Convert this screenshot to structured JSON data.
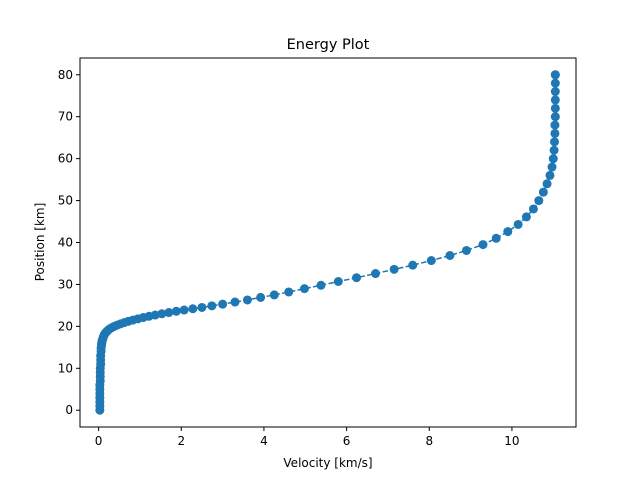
{
  "chart_data": {
    "type": "line",
    "title": "Energy Plot",
    "xlabel": "Velocity [km/s]",
    "ylabel": "Position [km]",
    "xlim": [
      -0.45,
      11.55
    ],
    "ylim": [
      -4.0,
      84.0
    ],
    "xticks": [
      0,
      2,
      4,
      6,
      8,
      10
    ],
    "yticks": [
      0,
      10,
      20,
      30,
      40,
      50,
      60,
      70,
      80
    ],
    "grid": false,
    "legend": "none",
    "series": [
      {
        "color": "#1f77b4",
        "line_style": "dashed",
        "marker": "circle",
        "x": [
          0.03,
          0.03,
          0.03,
          0.03,
          0.03,
          0.03,
          0.03,
          0.04,
          0.04,
          0.04,
          0.04,
          0.05,
          0.05,
          0.05,
          0.06,
          0.06,
          0.07,
          0.07,
          0.08,
          0.08,
          0.09,
          0.1,
          0.11,
          0.12,
          0.13,
          0.15,
          0.17,
          0.2,
          0.23,
          0.27,
          0.32,
          0.38,
          0.45,
          0.53,
          0.62,
          0.72,
          0.83,
          0.95,
          1.08,
          1.22,
          1.37,
          1.53,
          1.7,
          1.88,
          2.07,
          2.28,
          2.5,
          2.74,
          3.0,
          3.3,
          3.6,
          3.92,
          4.25,
          4.6,
          4.98,
          5.38,
          5.8,
          6.24,
          6.7,
          7.15,
          7.6,
          8.05,
          8.5,
          8.9,
          9.3,
          9.62,
          9.9,
          10.15,
          10.35,
          10.52,
          10.65,
          10.76,
          10.85,
          10.92,
          10.97,
          11.0,
          11.02,
          11.03,
          11.04,
          11.04,
          11.05,
          11.05,
          11.05,
          11.05,
          11.05,
          11.05,
          11.05
        ],
        "y": [
          0.0,
          1.0,
          2.0,
          3.0,
          4.0,
          5.0,
          6.0,
          7.0,
          8.0,
          9.0,
          10.0,
          11.0,
          12.0,
          13.0,
          14.0,
          14.8,
          15.4,
          15.8,
          16.1,
          16.4,
          16.7,
          17.0,
          17.3,
          17.6,
          17.9,
          18.2,
          18.5,
          18.8,
          19.1,
          19.4,
          19.7,
          20.0,
          20.3,
          20.6,
          20.9,
          21.2,
          21.5,
          21.8,
          22.1,
          22.4,
          22.7,
          23.0,
          23.3,
          23.6,
          23.9,
          24.2,
          24.5,
          24.9,
          25.3,
          25.8,
          26.3,
          26.9,
          27.5,
          28.2,
          29.0,
          29.8,
          30.7,
          31.6,
          32.6,
          33.6,
          34.6,
          35.7,
          36.9,
          38.1,
          39.5,
          41.0,
          42.6,
          44.3,
          46.1,
          48.0,
          50.0,
          52.0,
          54.0,
          56.0,
          58.0,
          60.0,
          62.0,
          64.0,
          66.0,
          68.0,
          70.0,
          72.0,
          74.0,
          76.0,
          78.0,
          80.0,
          80.0
        ]
      }
    ]
  }
}
